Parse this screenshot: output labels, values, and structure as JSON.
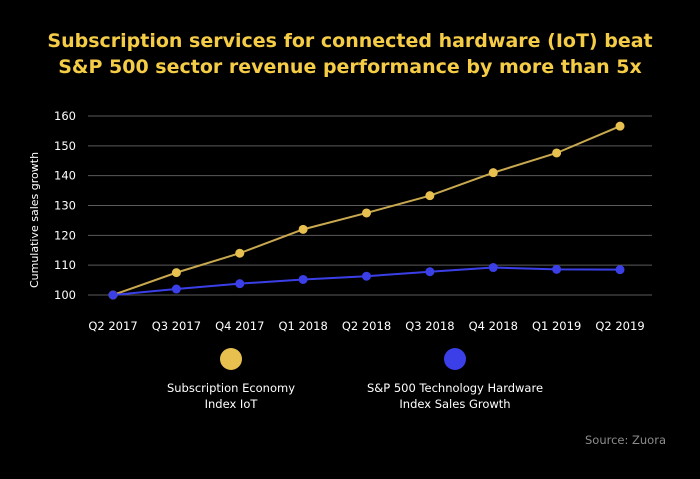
{
  "colors": {
    "title": "#f5cc45",
    "series1": "#e8c04f",
    "series1_line": "#c9a94f",
    "series2": "#3b3fe8",
    "grid": "#5a5a5a",
    "axis_text": "#ffffff",
    "source_text": "#8c8c8c"
  },
  "title_lines": [
    "Subscription services for connected hardware (IoT) beat",
    "S&P 500 sector revenue performance by more than 5x"
  ],
  "source": "Source: Zuora",
  "chart_data": {
    "type": "line",
    "title": "Subscription services for connected hardware (IoT) beat S&P 500 sector revenue performance by more than 5x",
    "xlabel": "",
    "ylabel": "Cumulative sales growth",
    "categories": [
      "Q2 2017",
      "Q3 2017",
      "Q4 2017",
      "Q1 2018",
      "Q2 2018",
      "Q3 2018",
      "Q4 2018",
      "Q1 2019",
      "Q2 2019"
    ],
    "yticks": [
      100,
      110,
      120,
      130,
      140,
      150,
      160
    ],
    "ylim": [
      100,
      160
    ],
    "grid": true,
    "legend_position": "bottom",
    "series": [
      {
        "name": "Subscription Economy Index IoT",
        "legend_lines": [
          "Subscription Economy",
          "Index IoT"
        ],
        "values": [
          100,
          107.5,
          114,
          122,
          127.5,
          133.3,
          141,
          147.6,
          156.6
        ]
      },
      {
        "name": "S&P 500 Technology Hardware Index Sales Growth",
        "legend_lines": [
          "S&P 500 Technology Hardware",
          "Index Sales Growth"
        ],
        "values": [
          100,
          102,
          103.8,
          105.2,
          106.3,
          107.8,
          109.2,
          108.6,
          108.5
        ]
      }
    ]
  }
}
